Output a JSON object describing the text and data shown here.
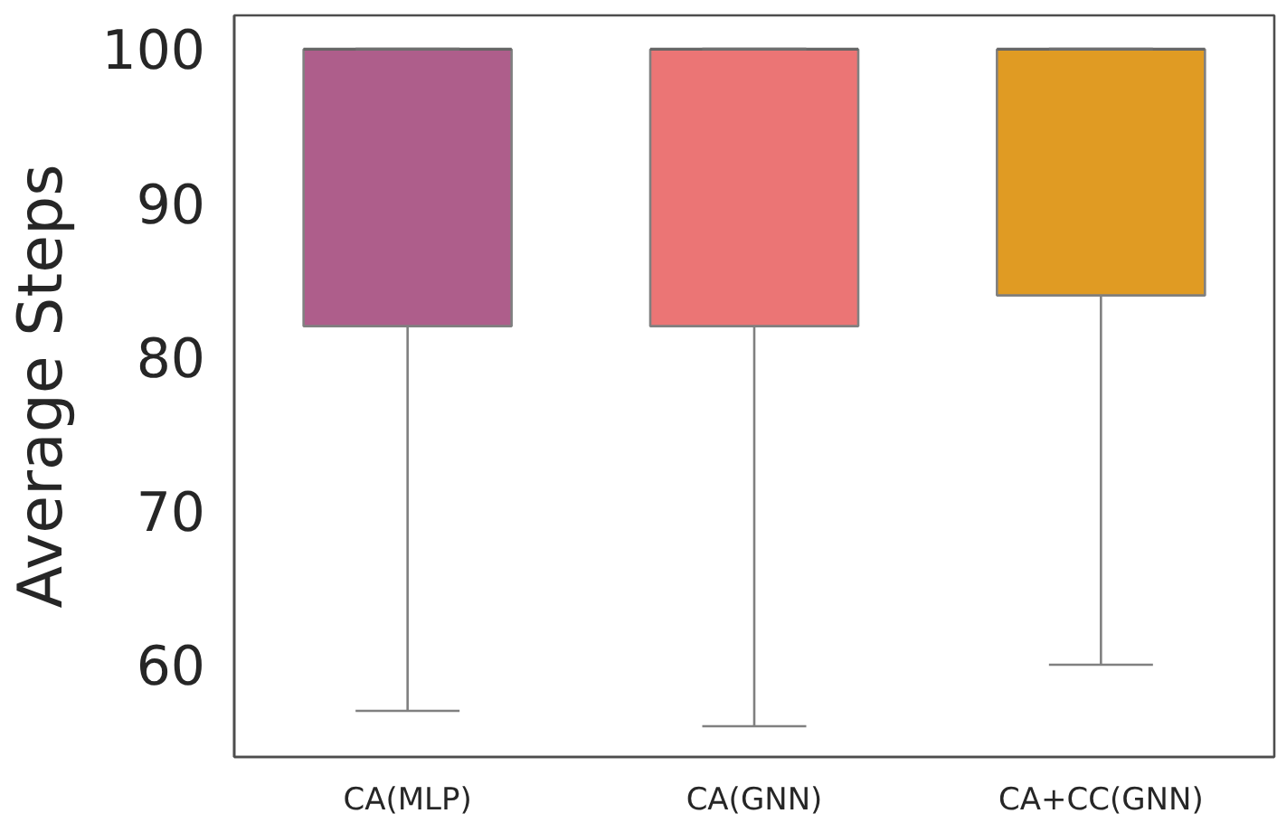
{
  "chart_data": {
    "type": "box",
    "ylabel": "Average Steps",
    "categories": [
      "CA(MLP)",
      "CA(GNN)",
      "CA+CC(GNN)"
    ],
    "colors": [
      "#ae5e8b",
      "#eb7575",
      "#e09b23"
    ],
    "boxes": [
      {
        "low": 57,
        "q1": 82,
        "median": 100,
        "q3": 100,
        "high": 100
      },
      {
        "low": 56,
        "q1": 82,
        "median": 100,
        "q3": 100,
        "high": 100
      },
      {
        "low": 60,
        "q1": 84,
        "median": 100,
        "q3": 100,
        "high": 100
      }
    ],
    "ylim": [
      54,
      102.2
    ],
    "yticks": [
      60,
      70,
      80,
      90,
      100
    ]
  }
}
